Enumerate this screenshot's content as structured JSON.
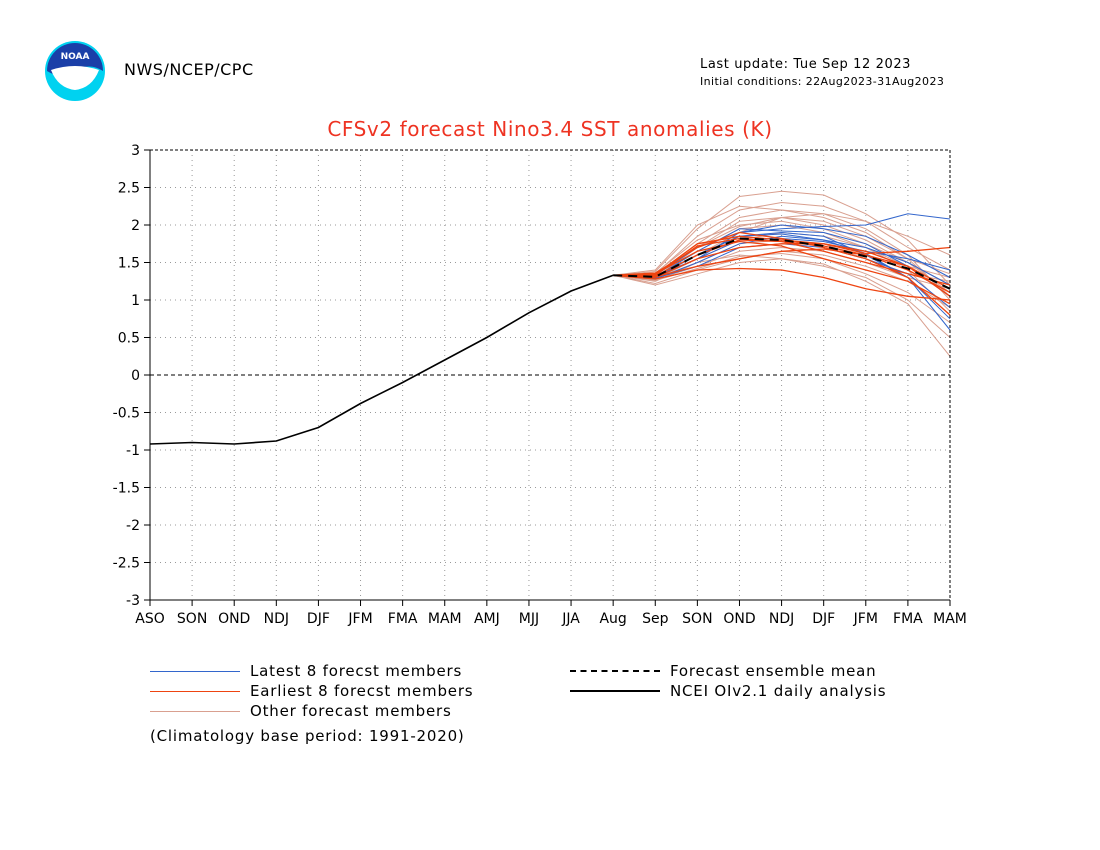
{
  "header": {
    "agency": "NWS/NCEP/CPC",
    "logo_text": "NOAA",
    "last_update": "Last update: Tue Sep 12 2023",
    "initial_conditions": "Initial conditions: 22Aug2023-31Aug2023"
  },
  "colors": {
    "latest": "#3366cc",
    "earliest": "#ee4411",
    "other": "#d9a090",
    "mean": "#000000",
    "analysis": "#000000",
    "title": "#ee3322",
    "grid": "#999999",
    "logo_blue": "#1a3fa8",
    "logo_cyan": "#00d2f0"
  },
  "legend": {
    "latest": "Latest 8 forecst members",
    "earliest": "Earliest 8 forecst members",
    "other": "Other forecast members",
    "mean": "Forecast ensemble mean",
    "analysis": "NCEI OIv2.1 daily analysis",
    "climatology": "(Climatology base period: 1991-2020)"
  },
  "chart_data": {
    "type": "line",
    "title": "CFSv2 forecast Nino3.4 SST anomalies (K)",
    "x_ticks": [
      "ASO",
      "SON",
      "OND",
      "NDJ",
      "DJF",
      "JFM",
      "FMA",
      "MAM",
      "AMJ",
      "MJJ",
      "JJA",
      "Aug",
      "Sep",
      "SON",
      "OND",
      "NDJ",
      "DJF",
      "JFM",
      "FMA",
      "MAM"
    ],
    "y_ticks": [
      "3",
      "2.5",
      "2",
      "1.5",
      "1",
      "0.5",
      "0",
      "-0.5",
      "-1",
      "-1.5",
      "-2",
      "-2.5",
      "-3"
    ],
    "ylim": [
      -3,
      3
    ],
    "grid": true,
    "zero_line": true,
    "analysis": [
      -0.92,
      -0.9,
      -0.92,
      -0.88,
      -0.7,
      -0.38,
      -0.1,
      0.2,
      0.5,
      0.83,
      1.12,
      1.33
    ],
    "ensemble_mean": [
      1.33,
      1.31,
      1.6,
      1.82,
      1.8,
      1.72,
      1.58,
      1.42,
      1.15
    ],
    "latest_members": [
      [
        1.33,
        1.32,
        1.55,
        1.9,
        1.95,
        1.98,
        2.0,
        2.15,
        2.08
      ],
      [
        1.33,
        1.3,
        1.6,
        1.85,
        1.9,
        1.85,
        1.6,
        1.3,
        0.6
      ],
      [
        1.33,
        1.28,
        1.5,
        1.75,
        1.85,
        1.8,
        1.7,
        1.5,
        1.2
      ],
      [
        1.33,
        1.31,
        1.65,
        1.95,
        1.92,
        1.9,
        1.75,
        1.45,
        1.05
      ],
      [
        1.33,
        1.29,
        1.45,
        1.7,
        1.75,
        1.7,
        1.55,
        1.35,
        0.9
      ],
      [
        1.33,
        1.33,
        1.7,
        1.9,
        2.0,
        1.95,
        1.85,
        1.6,
        1.3
      ],
      [
        1.33,
        1.3,
        1.55,
        1.8,
        1.82,
        1.78,
        1.65,
        1.55,
        1.4
      ],
      [
        1.33,
        1.32,
        1.6,
        1.85,
        1.88,
        1.8,
        1.62,
        1.3,
        0.75
      ]
    ],
    "earliest_members": [
      [
        1.33,
        1.34,
        1.75,
        1.85,
        1.8,
        1.75,
        1.65,
        1.45,
        1.05
      ],
      [
        1.33,
        1.36,
        1.7,
        1.9,
        1.82,
        1.7,
        1.55,
        1.3,
        0.8
      ],
      [
        1.33,
        1.3,
        1.55,
        1.7,
        1.75,
        1.75,
        1.62,
        1.65,
        1.7
      ],
      [
        1.33,
        1.28,
        1.4,
        1.42,
        1.4,
        1.3,
        1.15,
        1.05,
        1.0
      ],
      [
        1.33,
        1.32,
        1.6,
        1.8,
        1.78,
        1.72,
        1.6,
        1.45,
        1.15
      ],
      [
        1.33,
        1.35,
        1.65,
        1.78,
        1.72,
        1.55,
        1.4,
        1.25,
        0.95
      ],
      [
        1.33,
        1.31,
        1.45,
        1.55,
        1.65,
        1.68,
        1.6,
        1.4,
        1.1
      ],
      [
        1.33,
        1.33,
        1.72,
        1.82,
        1.78,
        1.65,
        1.5,
        1.35,
        1.2
      ]
    ],
    "other_members": [
      [
        1.33,
        1.38,
        1.95,
        2.38,
        2.45,
        2.4,
        2.15,
        1.8,
        1.2
      ],
      [
        1.33,
        1.35,
        1.85,
        2.2,
        2.3,
        2.25,
        2.05,
        1.7,
        1.4
      ],
      [
        1.33,
        1.4,
        2.0,
        2.25,
        2.2,
        2.1,
        1.9,
        1.55,
        1.05
      ],
      [
        1.33,
        1.25,
        1.5,
        1.6,
        1.55,
        1.45,
        1.3,
        1.0,
        0.5
      ],
      [
        1.33,
        1.2,
        1.35,
        1.5,
        1.55,
        1.48,
        1.25,
        0.95,
        0.25
      ],
      [
        1.33,
        1.3,
        1.7,
        2.05,
        2.1,
        2.0,
        1.8,
        1.5,
        1.1
      ],
      [
        1.33,
        1.32,
        1.6,
        1.9,
        2.1,
        2.15,
        2.05,
        1.85,
        1.6
      ],
      [
        1.33,
        1.28,
        1.55,
        1.8,
        1.9,
        1.85,
        1.7,
        1.45,
        1.3
      ],
      [
        1.33,
        1.36,
        1.8,
        2.0,
        2.05,
        1.95,
        1.75,
        1.5,
        1.2
      ],
      [
        1.33,
        1.22,
        1.4,
        1.55,
        1.65,
        1.6,
        1.45,
        1.25,
        0.9
      ],
      [
        1.33,
        1.34,
        1.75,
        2.1,
        2.2,
        2.15,
        1.95,
        1.6,
        1.0
      ],
      [
        1.33,
        1.29,
        1.5,
        1.75,
        1.8,
        1.75,
        1.55,
        1.35,
        1.25
      ],
      [
        1.33,
        1.31,
        1.65,
        1.95,
        2.0,
        1.9,
        1.7,
        1.4,
        0.85
      ],
      [
        1.33,
        1.27,
        1.45,
        1.65,
        1.7,
        1.65,
        1.5,
        1.3,
        1.15
      ],
      [
        1.33,
        1.33,
        1.7,
        1.98,
        2.1,
        2.05,
        1.85,
        1.55,
        1.35
      ],
      [
        1.33,
        1.26,
        1.42,
        1.58,
        1.62,
        1.55,
        1.35,
        1.1,
        0.7
      ]
    ]
  }
}
